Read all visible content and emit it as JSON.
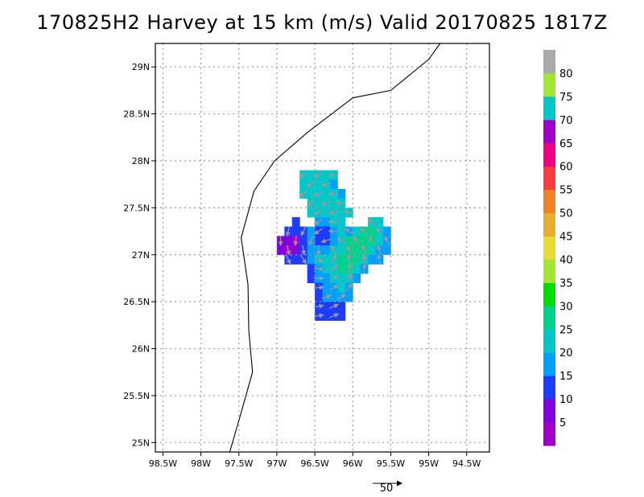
{
  "title": "170825H2  Harvey at 15 km (m/s) Valid 20170825  1817Z",
  "map": {
    "lon_range": [
      -98.6,
      -94.2
    ],
    "lat_range": [
      24.9,
      29.25
    ],
    "lon_ticks": [
      {
        "value": -98.5,
        "label": "98.5W"
      },
      {
        "value": -98.0,
        "label": "98W"
      },
      {
        "value": -97.5,
        "label": "97.5W"
      },
      {
        "value": -97.0,
        "label": "97W"
      },
      {
        "value": -96.5,
        "label": "96.5W"
      },
      {
        "value": -96.0,
        "label": "96W"
      },
      {
        "value": -95.5,
        "label": "95.5W"
      },
      {
        "value": -95.0,
        "label": "95W"
      },
      {
        "value": -94.5,
        "label": "94.5W"
      }
    ],
    "lat_ticks": [
      {
        "value": 25.0,
        "label": "25N"
      },
      {
        "value": 25.5,
        "label": "25.5N"
      },
      {
        "value": 26.0,
        "label": "26N"
      },
      {
        "value": 26.5,
        "label": "26.5N"
      },
      {
        "value": 27.0,
        "label": "27N"
      },
      {
        "value": 27.5,
        "label": "27.5N"
      },
      {
        "value": 28.0,
        "label": "28N"
      },
      {
        "value": 28.5,
        "label": "28.5N"
      },
      {
        "value": 29.0,
        "label": "29N"
      }
    ],
    "grid": true,
    "coastline": [
      [
        -97.62,
        24.9
      ],
      [
        -97.47,
        25.32
      ],
      [
        -97.32,
        25.75
      ],
      [
        -97.37,
        26.2
      ],
      [
        -97.38,
        26.68
      ],
      [
        -97.47,
        27.18
      ],
      [
        -97.3,
        27.68
      ],
      [
        -97.03,
        28.0
      ],
      [
        -96.6,
        28.3
      ],
      [
        -96.0,
        28.67
      ],
      [
        -95.5,
        28.75
      ],
      [
        -95.0,
        29.08
      ],
      [
        -94.85,
        29.25
      ]
    ]
  },
  "colorbar": {
    "colors": [
      "#a000c8",
      "#8200dc",
      "#1e3cff",
      "#00a0ff",
      "#00c8c8",
      "#00d28c",
      "#00dc00",
      "#a0e632",
      "#e6dc32",
      "#e6af2d",
      "#f08228",
      "#fa3c3c",
      "#f00082",
      "#a000c8",
      "#00c8c8",
      "#a0e632",
      "#aaaaaa"
    ],
    "labels": [
      "5",
      "10",
      "15",
      "20",
      "25",
      "30",
      "35",
      "40",
      "45",
      "50",
      "55",
      "60",
      "65",
      "70",
      "75",
      "80"
    ]
  },
  "wind_field": {
    "center": [
      -96.35,
      27.02
    ],
    "cells": [
      {
        "lon": -96.65,
        "lat": 27.85,
        "color": "#00c8c8"
      },
      {
        "lon": -96.55,
        "lat": 27.85,
        "color": "#00c8c8"
      },
      {
        "lon": -96.45,
        "lat": 27.85,
        "color": "#00c8c8"
      },
      {
        "lon": -96.35,
        "lat": 27.85,
        "color": "#00c8c8"
      },
      {
        "lon": -96.25,
        "lat": 27.85,
        "color": "#00c8c8"
      },
      {
        "lon": -96.65,
        "lat": 27.75,
        "color": "#00c8c8"
      },
      {
        "lon": -96.55,
        "lat": 27.75,
        "color": "#00c8c8"
      },
      {
        "lon": -96.45,
        "lat": 27.75,
        "color": "#00c8c8"
      },
      {
        "lon": -96.35,
        "lat": 27.75,
        "color": "#00c8c8"
      },
      {
        "lon": -96.25,
        "lat": 27.75,
        "color": "#00a0ff"
      },
      {
        "lon": -96.65,
        "lat": 27.65,
        "color": "#00c8c8"
      },
      {
        "lon": -96.55,
        "lat": 27.65,
        "color": "#00c8c8"
      },
      {
        "lon": -96.45,
        "lat": 27.65,
        "color": "#00c8c8"
      },
      {
        "lon": -96.35,
        "lat": 27.65,
        "color": "#00c8c8"
      },
      {
        "lon": -96.25,
        "lat": 27.65,
        "color": "#00c8c8"
      },
      {
        "lon": -96.15,
        "lat": 27.65,
        "color": "#00a0ff"
      },
      {
        "lon": -96.55,
        "lat": 27.55,
        "color": "#00c8c8"
      },
      {
        "lon": -96.45,
        "lat": 27.55,
        "color": "#00c8c8"
      },
      {
        "lon": -96.35,
        "lat": 27.55,
        "color": "#00c8c8"
      },
      {
        "lon": -96.25,
        "lat": 27.55,
        "color": "#00c8c8"
      },
      {
        "lon": -96.15,
        "lat": 27.55,
        "color": "#00c8c8"
      },
      {
        "lon": -96.55,
        "lat": 27.45,
        "color": "#00c8c8"
      },
      {
        "lon": -96.45,
        "lat": 27.45,
        "color": "#00c8c8"
      },
      {
        "lon": -96.35,
        "lat": 27.45,
        "color": "#00c8c8"
      },
      {
        "lon": -96.25,
        "lat": 27.45,
        "color": "#00c8c8"
      },
      {
        "lon": -96.15,
        "lat": 27.45,
        "color": "#00c8c8"
      },
      {
        "lon": -96.05,
        "lat": 27.45,
        "color": "#00c8c8"
      },
      {
        "lon": -96.75,
        "lat": 27.35,
        "color": "#1e3cff"
      },
      {
        "lon": -96.45,
        "lat": 27.35,
        "color": "#00a0ff"
      },
      {
        "lon": -96.35,
        "lat": 27.35,
        "color": "#00a0ff"
      },
      {
        "lon": -96.25,
        "lat": 27.35,
        "color": "#00c8c8"
      },
      {
        "lon": -96.15,
        "lat": 27.35,
        "color": "#00c8c8"
      },
      {
        "lon": -95.75,
        "lat": 27.35,
        "color": "#00c8c8"
      },
      {
        "lon": -95.65,
        "lat": 27.35,
        "color": "#00c8c8"
      },
      {
        "lon": -96.85,
        "lat": 27.25,
        "color": "#1e3cff"
      },
      {
        "lon": -96.75,
        "lat": 27.25,
        "color": "#1e3cff"
      },
      {
        "lon": -96.65,
        "lat": 27.25,
        "color": "#1e3cff"
      },
      {
        "lon": -96.55,
        "lat": 27.25,
        "color": "#00a0ff"
      },
      {
        "lon": -96.45,
        "lat": 27.25,
        "color": "#1e3cff"
      },
      {
        "lon": -96.35,
        "lat": 27.25,
        "color": "#1e3cff"
      },
      {
        "lon": -96.25,
        "lat": 27.25,
        "color": "#00a0ff"
      },
      {
        "lon": -96.15,
        "lat": 27.25,
        "color": "#00c8c8"
      },
      {
        "lon": -96.05,
        "lat": 27.25,
        "color": "#00a0ff"
      },
      {
        "lon": -95.95,
        "lat": 27.25,
        "color": "#00c8c8"
      },
      {
        "lon": -95.85,
        "lat": 27.25,
        "color": "#00d28c"
      },
      {
        "lon": -95.75,
        "lat": 27.25,
        "color": "#00d28c"
      },
      {
        "lon": -95.65,
        "lat": 27.25,
        "color": "#00c8c8"
      },
      {
        "lon": -95.55,
        "lat": 27.25,
        "color": "#00a0ff"
      },
      {
        "lon": -96.95,
        "lat": 27.15,
        "color": "#8200dc"
      },
      {
        "lon": -96.85,
        "lat": 27.15,
        "color": "#8200dc"
      },
      {
        "lon": -96.75,
        "lat": 27.15,
        "color": "#a000c8"
      },
      {
        "lon": -96.65,
        "lat": 27.15,
        "color": "#1e3cff"
      },
      {
        "lon": -96.55,
        "lat": 27.15,
        "color": "#00a0ff"
      },
      {
        "lon": -96.45,
        "lat": 27.15,
        "color": "#1e3cff"
      },
      {
        "lon": -96.35,
        "lat": 27.15,
        "color": "#1e3cff"
      },
      {
        "lon": -96.25,
        "lat": 27.15,
        "color": "#00a0ff"
      },
      {
        "lon": -96.15,
        "lat": 27.15,
        "color": "#00c8c8"
      },
      {
        "lon": -96.05,
        "lat": 27.15,
        "color": "#00d28c"
      },
      {
        "lon": -95.95,
        "lat": 27.15,
        "color": "#00d28c"
      },
      {
        "lon": -95.85,
        "lat": 27.15,
        "color": "#00d28c"
      },
      {
        "lon": -95.75,
        "lat": 27.15,
        "color": "#00d28c"
      },
      {
        "lon": -95.65,
        "lat": 27.15,
        "color": "#00c8c8"
      },
      {
        "lon": -95.55,
        "lat": 27.15,
        "color": "#00a0ff"
      },
      {
        "lon": -96.95,
        "lat": 27.05,
        "color": "#8200dc"
      },
      {
        "lon": -96.85,
        "lat": 27.05,
        "color": "#a000c8"
      },
      {
        "lon": -96.75,
        "lat": 27.05,
        "color": "#8200dc"
      },
      {
        "lon": -96.65,
        "lat": 27.05,
        "color": "#1e3cff"
      },
      {
        "lon": -96.55,
        "lat": 27.05,
        "color": "#00a0ff"
      },
      {
        "lon": -96.45,
        "lat": 27.05,
        "color": "#00a0ff"
      },
      {
        "lon": -96.35,
        "lat": 27.05,
        "color": "#00a0ff"
      },
      {
        "lon": -96.25,
        "lat": 27.05,
        "color": "#00c8c8"
      },
      {
        "lon": -96.15,
        "lat": 27.05,
        "color": "#00c8c8"
      },
      {
        "lon": -96.05,
        "lat": 27.05,
        "color": "#00d28c"
      },
      {
        "lon": -95.95,
        "lat": 27.05,
        "color": "#00d28c"
      },
      {
        "lon": -95.85,
        "lat": 27.05,
        "color": "#00d28c"
      },
      {
        "lon": -95.75,
        "lat": 27.05,
        "color": "#00c8c8"
      },
      {
        "lon": -95.65,
        "lat": 27.05,
        "color": "#00a0ff"
      },
      {
        "lon": -95.55,
        "lat": 27.05,
        "color": "#00a0ff"
      },
      {
        "lon": -96.85,
        "lat": 26.95,
        "color": "#1e3cff"
      },
      {
        "lon": -96.75,
        "lat": 26.95,
        "color": "#1e3cff"
      },
      {
        "lon": -96.65,
        "lat": 26.95,
        "color": "#1e3cff"
      },
      {
        "lon": -96.55,
        "lat": 26.95,
        "color": "#00a0ff"
      },
      {
        "lon": -96.45,
        "lat": 26.95,
        "color": "#00c8c8"
      },
      {
        "lon": -96.35,
        "lat": 26.95,
        "color": "#00c8c8"
      },
      {
        "lon": -96.25,
        "lat": 26.95,
        "color": "#00c8c8"
      },
      {
        "lon": -96.15,
        "lat": 26.95,
        "color": "#00d28c"
      },
      {
        "lon": -96.05,
        "lat": 26.95,
        "color": "#00d28c"
      },
      {
        "lon": -95.95,
        "lat": 26.95,
        "color": "#00d28c"
      },
      {
        "lon": -95.85,
        "lat": 26.95,
        "color": "#00c8c8"
      },
      {
        "lon": -95.75,
        "lat": 26.95,
        "color": "#00a0ff"
      },
      {
        "lon": -95.65,
        "lat": 26.95,
        "color": "#00a0ff"
      },
      {
        "lon": -96.55,
        "lat": 26.85,
        "color": "#1e3cff"
      },
      {
        "lon": -96.45,
        "lat": 26.85,
        "color": "#00a0ff"
      },
      {
        "lon": -96.35,
        "lat": 26.85,
        "color": "#00c8c8"
      },
      {
        "lon": -96.25,
        "lat": 26.85,
        "color": "#00c8c8"
      },
      {
        "lon": -96.15,
        "lat": 26.85,
        "color": "#00d28c"
      },
      {
        "lon": -96.05,
        "lat": 26.85,
        "color": "#00d28c"
      },
      {
        "lon": -95.95,
        "lat": 26.85,
        "color": "#00c8c8"
      },
      {
        "lon": -95.85,
        "lat": 26.85,
        "color": "#00a0ff"
      },
      {
        "lon": -96.55,
        "lat": 26.75,
        "color": "#1e3cff"
      },
      {
        "lon": -96.45,
        "lat": 26.75,
        "color": "#00a0ff"
      },
      {
        "lon": -96.35,
        "lat": 26.75,
        "color": "#00a0ff"
      },
      {
        "lon": -96.25,
        "lat": 26.75,
        "color": "#00c8c8"
      },
      {
        "lon": -96.15,
        "lat": 26.75,
        "color": "#00c8c8"
      },
      {
        "lon": -96.05,
        "lat": 26.75,
        "color": "#00c8c8"
      },
      {
        "lon": -95.95,
        "lat": 26.75,
        "color": "#00a0ff"
      },
      {
        "lon": -96.45,
        "lat": 26.65,
        "color": "#1e3cff"
      },
      {
        "lon": -96.35,
        "lat": 26.65,
        "color": "#00a0ff"
      },
      {
        "lon": -96.25,
        "lat": 26.65,
        "color": "#00a0ff"
      },
      {
        "lon": -96.15,
        "lat": 26.65,
        "color": "#00c8c8"
      },
      {
        "lon": -96.05,
        "lat": 26.65,
        "color": "#00a0ff"
      },
      {
        "lon": -96.45,
        "lat": 26.55,
        "color": "#1e3cff"
      },
      {
        "lon": -96.35,
        "lat": 26.55,
        "color": "#00a0ff"
      },
      {
        "lon": -96.25,
        "lat": 26.55,
        "color": "#00a0ff"
      },
      {
        "lon": -96.15,
        "lat": 26.55,
        "color": "#00a0ff"
      },
      {
        "lon": -96.05,
        "lat": 26.55,
        "color": "#00a0ff"
      },
      {
        "lon": -96.45,
        "lat": 26.45,
        "color": "#1e3cff"
      },
      {
        "lon": -96.35,
        "lat": 26.45,
        "color": "#1e3cff"
      },
      {
        "lon": -96.25,
        "lat": 26.45,
        "color": "#1e3cff"
      },
      {
        "lon": -96.15,
        "lat": 26.45,
        "color": "#1e3cff"
      },
      {
        "lon": -96.45,
        "lat": 26.35,
        "color": "#1e3cff"
      },
      {
        "lon": -96.35,
        "lat": 26.35,
        "color": "#1e3cff"
      },
      {
        "lon": -96.25,
        "lat": 26.35,
        "color": "#1e3cff"
      },
      {
        "lon": -96.15,
        "lat": 26.35,
        "color": "#1e3cff"
      }
    ]
  },
  "scale_vector": {
    "label": "50"
  }
}
